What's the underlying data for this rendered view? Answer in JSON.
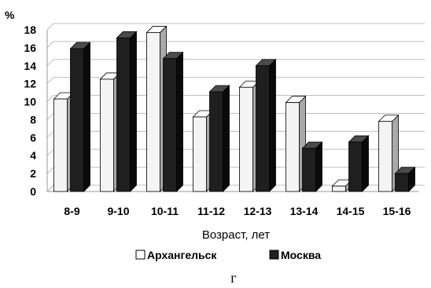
{
  "chart_data": {
    "type": "bar",
    "style": "3d-clustered-column",
    "categories": [
      "8-9",
      "9-10",
      "10-11",
      "11-12",
      "12-13",
      "13-14",
      "14-15",
      "15-16"
    ],
    "series": [
      {
        "name": "Архангельск",
        "color": "#f2f2f2",
        "values": [
          10.3,
          12.5,
          17.7,
          8.3,
          11.6,
          9.9,
          0.6,
          7.8
        ]
      },
      {
        "name": "Москва",
        "color": "#222222",
        "values": [
          15.9,
          17.1,
          14.8,
          11.1,
          14.0,
          4.8,
          5.5,
          2.0
        ]
      }
    ],
    "y_unit": "%",
    "xlabel": "Возраст, лет",
    "ylim": [
      0,
      18
    ],
    "yticks": [
      "0",
      "2",
      "4",
      "6",
      "8",
      "10",
      "12",
      "14",
      "16",
      "18"
    ],
    "grid": true,
    "legend_position": "bottom",
    "panel_label": "г"
  }
}
